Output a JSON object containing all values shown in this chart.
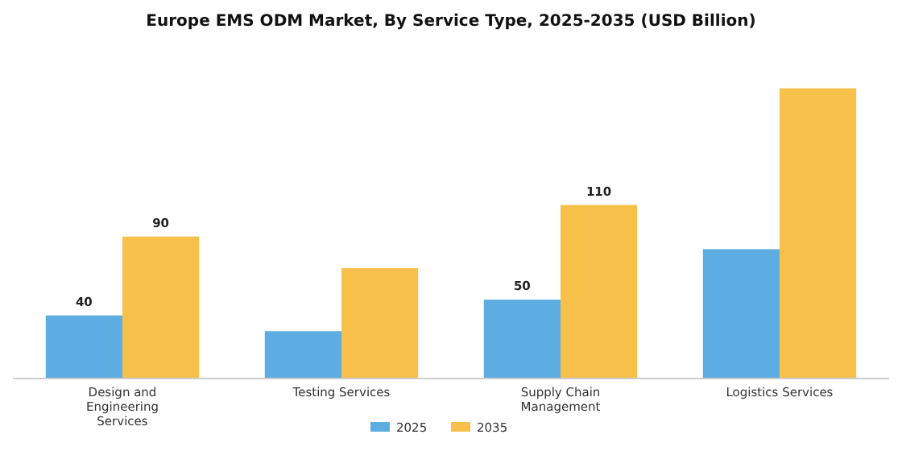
{
  "chart_data": {
    "type": "bar",
    "title": "Europe EMS ODM Market, By Service Type, 2025-2035 (USD Billion)",
    "categories": [
      "Design and Engineering Services",
      "Testing Services",
      "Supply Chain Management",
      "Logistics Services"
    ],
    "series": [
      {
        "name": "2025",
        "color": "#5dade2",
        "values": [
          40,
          30,
          50,
          82
        ],
        "value_labels": [
          "40",
          null,
          "50",
          null
        ]
      },
      {
        "name": "2035",
        "color": "#f7c04a",
        "values": [
          90,
          70,
          110,
          184
        ],
        "value_labels": [
          "90",
          null,
          "110",
          null
        ]
      }
    ],
    "tick_labels": "x",
    "legend": "bottom",
    "grid": false
  }
}
